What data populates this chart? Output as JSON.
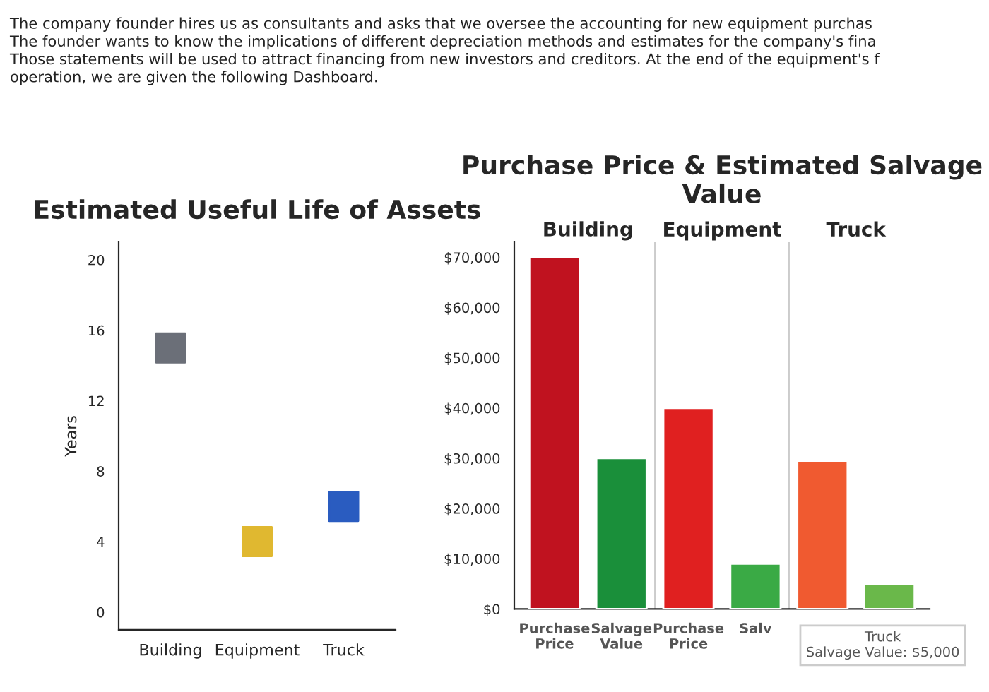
{
  "chart_data": [
    {
      "type": "scatter",
      "title": "Estimated Useful Life of Assets",
      "ylabel": "Years",
      "categories": [
        "Building",
        "Equipment",
        "Truck"
      ],
      "values": [
        15,
        4,
        6
      ],
      "colors": [
        "#6b6f78",
        "#e0b830",
        "#2a5cc0"
      ],
      "marker": "square",
      "ylim": [
        -1,
        21
      ],
      "yticks": [
        0,
        4,
        8,
        12,
        16,
        20
      ],
      "annotations": [
        "The company founder hires us as consultants and asks that we oversee the accounting for new equipment purchas\nThe founder wants to know the implications of different depreciation methods and estimates for the company's fina\nThose statements will be used to attract financing from new investors and creditors. At the end of the equipment's f\noperation, we are given the following Dashboard."
      ]
    },
    {
      "type": "bar",
      "title": "Purchase Price & Estimated Salvage Value",
      "categories": [
        "Purchase\nPrice",
        "Salvage\nValue",
        "Purchase\nPrice",
        "Salv",
        null,
        null
      ],
      "values": [
        70000,
        30000,
        40000,
        9000,
        29500,
        5000
      ],
      "colors": [
        "#c0121f",
        "#1a8f3a",
        "#e02020",
        "#3aaa45",
        "#f05a30",
        "#6ab84a"
      ],
      "ylim": [
        0,
        73000
      ],
      "yticks": [
        {
          "value": 0,
          "label": "$0"
        },
        {
          "value": 10000,
          "label": "$10,000"
        },
        {
          "value": 20000,
          "label": "$20,000"
        },
        {
          "value": 30000,
          "label": "$30,000"
        },
        {
          "value": 40000,
          "label": "$40,000"
        },
        {
          "value": 50000,
          "label": "$50,000"
        },
        {
          "value": 60000,
          "label": "$60,000"
        },
        {
          "value": 70000,
          "label": "$70,000"
        }
      ],
      "annotations": [
        "Building",
        "Equipment",
        "Truck",
        "Truck\nSalvage Value: $5,000"
      ]
    }
  ]
}
